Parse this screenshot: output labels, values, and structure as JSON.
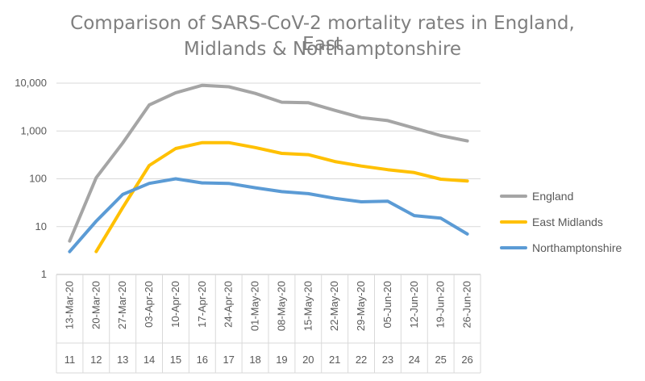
{
  "chart_data": {
    "type": "line",
    "title_line1": "Comparison of SARS-CoV-2 mortality rates in England, East",
    "title_line2": "Midlands & Northamptonshire",
    "y_scale": "log",
    "ylim": [
      1,
      10000
    ],
    "y_ticks": [
      "1",
      "10",
      "100",
      "1,000",
      "10,000"
    ],
    "y_tick_values": [
      1,
      10,
      100,
      1000,
      10000
    ],
    "categories": [
      "13-Mar-20",
      "20-Mar-20",
      "27-Mar-20",
      "03-Apr-20",
      "10-Apr-20",
      "17-Apr-20",
      "24-Apr-20",
      "01-May-20",
      "08-May-20",
      "15-May-20",
      "22-May-20",
      "29-May-20",
      "05-Jun-20",
      "12-Jun-20",
      "19-Jun-20",
      "26-Jun-20"
    ],
    "week_numbers": [
      "11",
      "12",
      "13",
      "14",
      "15",
      "16",
      "17",
      "18",
      "19",
      "20",
      "21",
      "22",
      "23",
      "24",
      "25",
      "26"
    ],
    "grid": "horizontal",
    "legend_position": "right",
    "series": [
      {
        "name": "England",
        "color": "#a5a5a5",
        "values": [
          5,
          105,
          560,
          3500,
          6300,
          9000,
          8400,
          6100,
          4000,
          3900,
          2700,
          1900,
          1650,
          1150,
          800,
          620
        ]
      },
      {
        "name": "East Midlands",
        "color": "#ffc000",
        "values": [
          null,
          3,
          25,
          190,
          430,
          570,
          570,
          450,
          340,
          320,
          230,
          185,
          155,
          135,
          98,
          90
        ]
      },
      {
        "name": "Northamptonshire",
        "color": "#5b9bd5",
        "values": [
          3,
          13,
          47,
          80,
          100,
          82,
          80,
          65,
          54,
          49,
          39,
          33,
          34,
          17,
          15,
          7
        ]
      }
    ]
  }
}
